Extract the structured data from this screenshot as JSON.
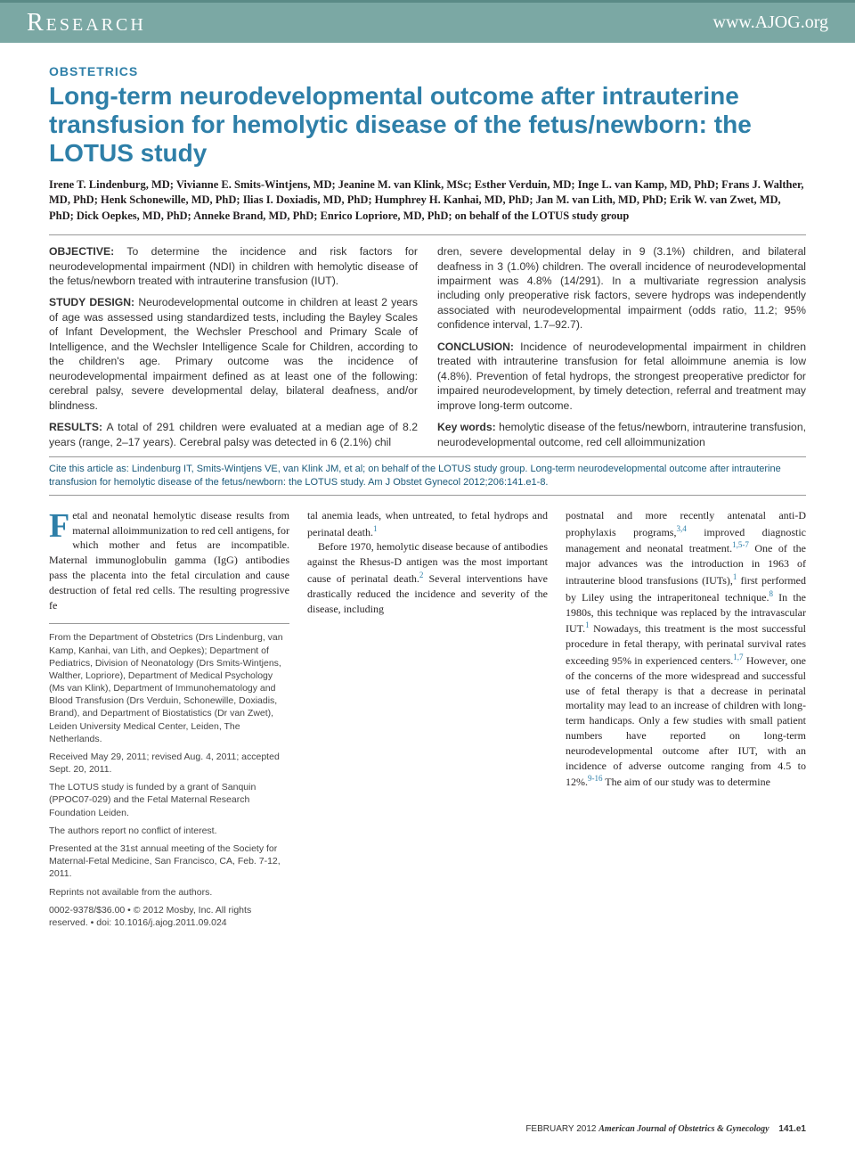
{
  "header": {
    "label": "Research",
    "url": "www.AJOG.org",
    "bg_color": "#7ba8a4",
    "text_color": "#ffffff"
  },
  "category": "OBSTETRICS",
  "title": "Long-term neurodevelopmental outcome after intrauterine transfusion for hemolytic disease of the fetus/newborn: the LOTUS study",
  "authors": "Irene T. Lindenburg, MD; Vivianne E. Smits-Wintjens, MD; Jeanine M. van Klink, MSc; Esther Verduin, MD; Inge L. van Kamp, MD, PhD; Frans J. Walther, MD, PhD; Henk Schonewille, MD, PhD; Ilias I. Doxiadis, MD, PhD; Humphrey H. Kanhai, MD, PhD; Jan M. van Lith, MD, PhD; Erik W. van Zwet, MD, PhD; Dick Oepkes, MD, PhD; Anneke Brand, MD, PhD; Enrico Lopriore, MD, PhD; on behalf of the LOTUS study group",
  "abstract": {
    "objective_label": "OBJECTIVE:",
    "objective": " To determine the incidence and risk factors for neurodevelopmental impairment (NDI) in children with hemolytic disease of the fetus/newborn treated with intrauterine transfusion (IUT).",
    "design_label": "STUDY DESIGN:",
    "design": " Neurodevelopmental outcome in children at least 2 years of age was assessed using standardized tests, including the Bayley Scales of Infant Development, the Wechsler Preschool and Primary Scale of Intelligence, and the Wechsler Intelligence Scale for Children, according to the children's age. Primary outcome was the incidence of neurodevelopmental impairment defined as at least one of the following: cerebral palsy, severe developmental delay, bilateral deafness, and/or blindness.",
    "results_label": "RESULTS:",
    "results": " A total of 291 children were evaluated at a median age of 8.2 years (range, 2–17 years). Cerebral palsy was detected in 6 (2.1%) chil",
    "results2": "dren, severe developmental delay in 9 (3.1%) children, and bilateral deafness in 3 (1.0%) children. The overall incidence of neurodevelopmental impairment was 4.8% (14/291). In a multivariate regression analysis including only preoperative risk factors, severe hydrops was independently associated with neurodevelopmental impairment (odds ratio, 11.2; 95% confidence interval, 1.7–92.7).",
    "conclusion_label": "CONCLUSION:",
    "conclusion": " Incidence of neurodevelopmental impairment in children treated with intrauterine transfusion for fetal alloimmune anemia is low (4.8%). Prevention of fetal hydrops, the strongest preoperative predictor for impaired neurodevelopment, by timely detection, referral and treatment may improve long-term outcome.",
    "keywords_label": "Key words:",
    "keywords": " hemolytic disease of the fetus/newborn, intrauterine transfusion, neurodevelopmental outcome, red cell alloimmunization"
  },
  "citation": "Cite this article as: Lindenburg IT, Smits-Wintjens VE, van Klink JM, et al; on behalf of the LOTUS study group. Long-term neurodevelopmental outcome after intrauterine transfusion for hemolytic disease of the fetus/newborn: the LOTUS study. Am J Obstet Gynecol 2012;206:141.e1-8.",
  "body": {
    "dropcap": "F",
    "p1a": "etal and neonatal hemolytic disease results from maternal alloimmunization to red cell antigens, for which mother and fetus are incompatible. Maternal immunoglobulin gamma (IgG) antibodies pass the placenta into the fetal circulation and cause destruction of fetal red cells. The resulting progressive fe",
    "p1b": "tal anemia leads, when untreated, to fetal hydrops and perinatal death.",
    "p2": "Before 1970, hemolytic disease because of antibodies against the Rhesus-D antigen was the most important cause of perinatal death.",
    "p2b": " Several interventions have drastically reduced the incidence and severity of the disease, including",
    "p3a": "postnatal and more recently antenatal anti-D prophylaxis programs,",
    "p3b": " improved diagnostic management and neonatal treatment.",
    "p3c": " One of the major advances was the introduction in 1963 of intrauterine blood transfusions (IUTs),",
    "p3d": " first performed by Liley using the intraperitoneal technique.",
    "p3e": " In the 1980s, this technique was replaced by the intravascular IUT.",
    "p3f": " Nowadays, this treatment is the most successful procedure in fetal therapy, with perinatal survival rates exceeding 95% in experienced centers.",
    "p3g": " However, one of the concerns of the more widespread and successful use of fetal therapy is that a decrease in perinatal mortality may lead to an increase of children with long-term handicaps. Only a few studies with small patient numbers have reported on long-term neurodevelopmental outcome after IUT, with an incidence of adverse outcome ranging from 4.5 to 12%.",
    "p3h": " The aim of our study was to determine"
  },
  "affiliations": {
    "from": "From the Department of Obstetrics (Drs Lindenburg, van Kamp, Kanhai, van Lith, and Oepkes); Department of Pediatrics, Division of Neonatology (Drs Smits-Wintjens, Walther, Lopriore), Department of Medical Psychology (Ms van Klink), Department of Immunohematology and Blood Transfusion (Drs Verduin, Schonewille, Doxiadis, Brand), and Department of Biostatistics (Dr van Zwet), Leiden University Medical Center, Leiden, The Netherlands.",
    "received": "Received May 29, 2011; revised Aug. 4, 2011; accepted Sept. 20, 2011.",
    "funding": "The LOTUS study is funded by a grant of Sanquin (PPOC07-029) and the Fetal Maternal Research Foundation Leiden.",
    "conflict": "The authors report no conflict of interest.",
    "presented": "Presented at the 31st annual meeting of the Society for Maternal-Fetal Medicine, San Francisco, CA, Feb. 7-12, 2011.",
    "reprints": "Reprints not available from the authors.",
    "copyright": "0002-9378/$36.00 • © 2012 Mosby, Inc. All rights reserved. • doi: 10.1016/j.ajog.2011.09.024"
  },
  "footer": {
    "date": "FEBRUARY 2012",
    "journal": "American Journal of Obstetrics & Gynecology",
    "page": "141.e1"
  },
  "colors": {
    "accent": "#2e7fa8",
    "banner": "#7ba8a4",
    "text": "#231f20"
  }
}
